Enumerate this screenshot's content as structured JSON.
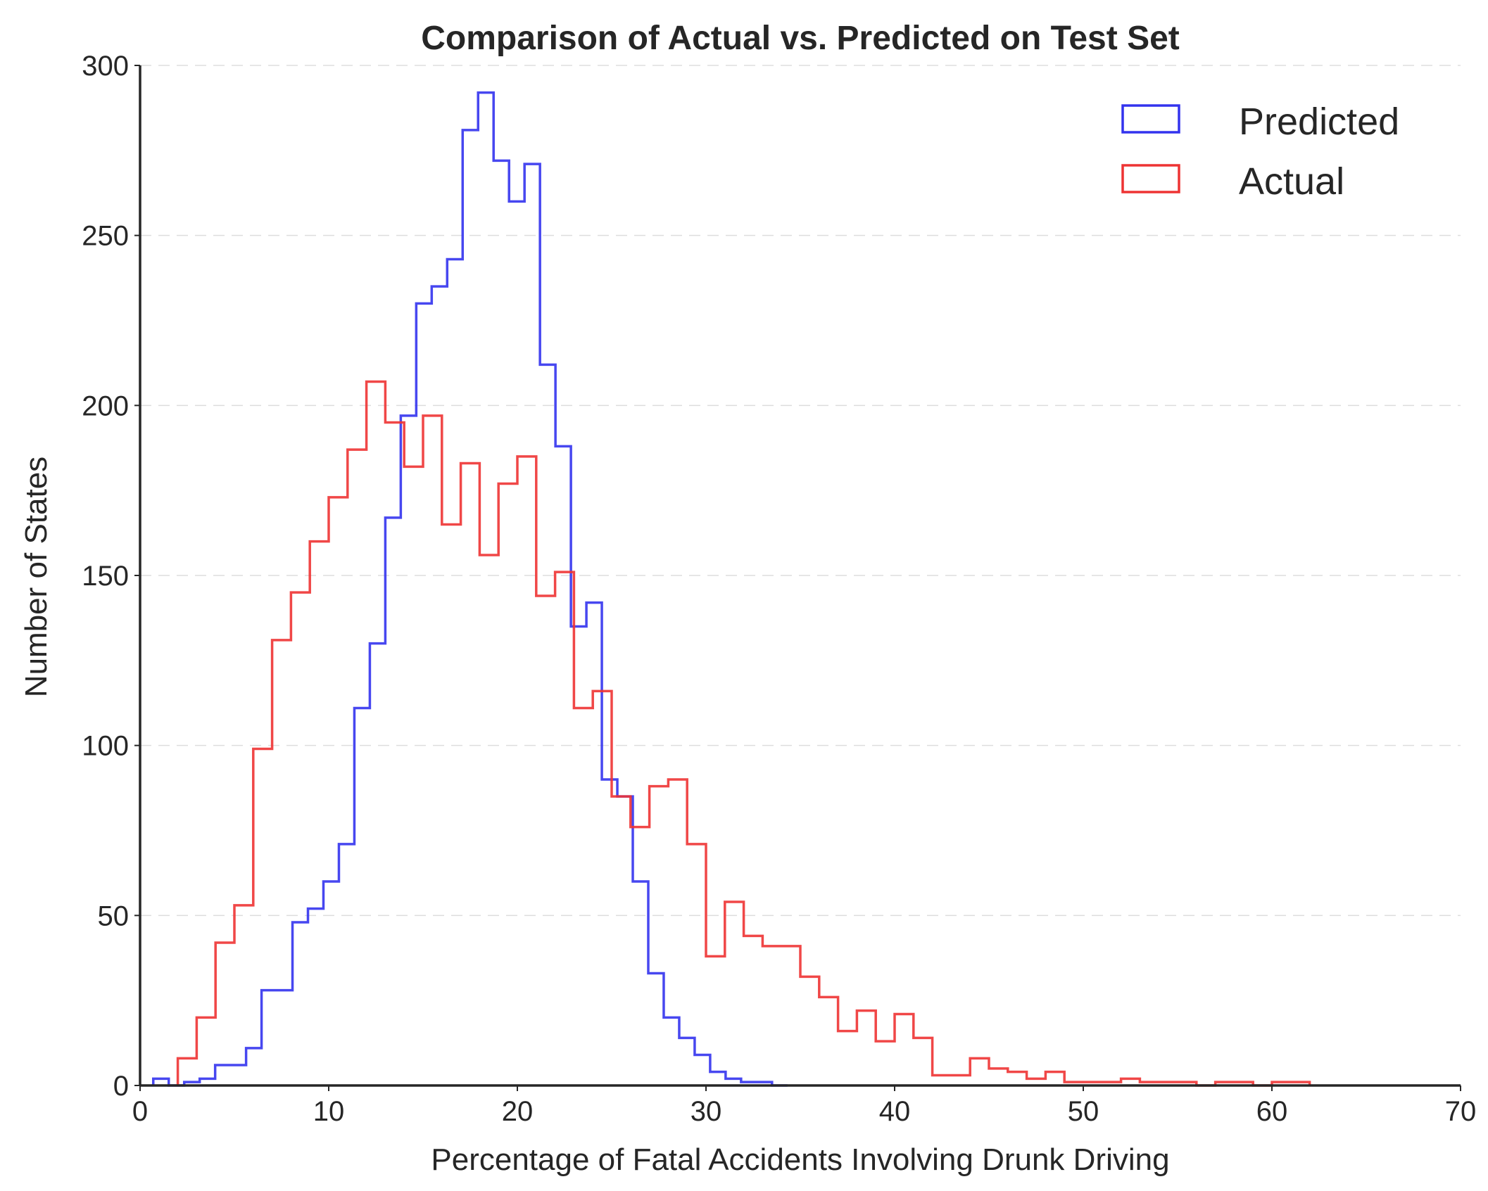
{
  "chart_data": {
    "type": "histogram",
    "title": "Comparison of Actual vs. Predicted on Test Set",
    "xlabel": "Percentage of Fatal Accidents Involving Drunk Driving",
    "ylabel": "Number of States",
    "xlim": [
      0,
      70
    ],
    "ylim": [
      0,
      300
    ],
    "xticks": [
      "0",
      "10",
      "20",
      "30",
      "40",
      "50",
      "60",
      "70"
    ],
    "yticks": [
      "0",
      "50",
      "100",
      "150",
      "200",
      "250",
      "300"
    ],
    "xtick_values": [
      0,
      10,
      20,
      30,
      40,
      50,
      60,
      70
    ],
    "ytick_values": [
      0,
      50,
      100,
      150,
      200,
      250,
      300
    ],
    "grid": "horizontal-dashed",
    "legend_position": "top-right",
    "series": [
      {
        "name": "Predicted",
        "color": "#3333ee",
        "bin_edges": [
          0.7,
          1.52,
          2.34,
          3.16,
          3.98,
          4.8,
          5.62,
          6.44,
          7.26,
          8.08,
          8.9,
          9.72,
          10.54,
          11.36,
          12.18,
          13.0,
          13.82,
          14.64,
          15.46,
          16.28,
          17.1,
          17.92,
          18.74,
          19.56,
          20.38,
          21.2,
          22.02,
          22.84,
          23.66,
          24.48,
          25.3,
          26.12,
          26.94,
          27.76,
          28.58,
          29.4,
          30.22,
          31.04,
          31.86,
          32.68,
          33.5,
          34.32
        ],
        "counts": [
          2,
          0,
          1,
          2,
          6,
          6,
          11,
          28,
          28,
          48,
          52,
          60,
          71,
          111,
          130,
          167,
          197,
          230,
          235,
          243,
          281,
          292,
          272,
          260,
          271,
          212,
          188,
          135,
          142,
          90,
          85,
          60,
          33,
          20,
          14,
          9,
          4,
          2,
          1,
          1,
          0
        ]
      },
      {
        "name": "Actual",
        "color": "#ee3333",
        "bin_edges": [
          2.0,
          3.0,
          4.0,
          5.0,
          6.0,
          7.0,
          8.0,
          9.0,
          10.0,
          11.0,
          12.0,
          13.0,
          14.0,
          15.0,
          16.0,
          17.0,
          18.0,
          19.0,
          20.0,
          21.0,
          22.0,
          23.0,
          24.0,
          25.0,
          26.0,
          27.0,
          28.0,
          29.0,
          30.0,
          31.0,
          32.0,
          33.0,
          34.0,
          35.0,
          36.0,
          37.0,
          38.0,
          39.0,
          40.0,
          41.0,
          42.0,
          43.0,
          44.0,
          45.0,
          46.0,
          47.0,
          48.0,
          49.0,
          50.0,
          51.0,
          52.0,
          53.0,
          54.0,
          55.0,
          56.0,
          57.0,
          58.0,
          59.0,
          60.0,
          61.0,
          62.0
        ],
        "counts": [
          8,
          20,
          42,
          53,
          99,
          131,
          145,
          160,
          173,
          187,
          207,
          195,
          182,
          197,
          165,
          183,
          156,
          177,
          185,
          144,
          151,
          111,
          116,
          85,
          76,
          88,
          90,
          71,
          38,
          54,
          44,
          41,
          41,
          32,
          26,
          16,
          22,
          13,
          21,
          14,
          3,
          3,
          8,
          5,
          4,
          2,
          4,
          1,
          1,
          1,
          2,
          1,
          1,
          1,
          0,
          1,
          1,
          0,
          1,
          1
        ]
      }
    ]
  }
}
